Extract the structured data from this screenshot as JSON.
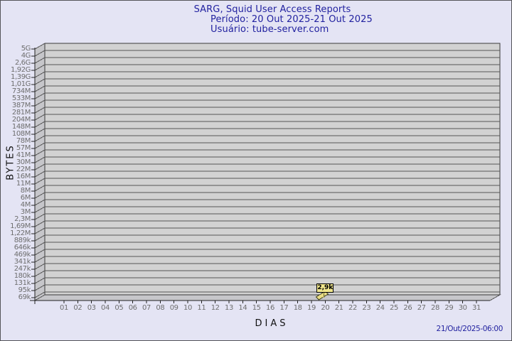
{
  "header": {
    "title": "SARG, Squid User Access Reports",
    "period": "Período: 20 Out 2025-21 Out 2025",
    "user": "Usuário: tube-server.com"
  },
  "footer": {
    "timestamp": "21/Out/2025-06:00"
  },
  "chart_data": {
    "type": "bar",
    "title": "SARG, Squid User Access Reports",
    "subtitle": "Período: 20 Out 2025-21 Out 2025",
    "user_line": "Usuário: tube-server.com",
    "xlabel": "DIAS",
    "ylabel": "BYTES",
    "y_scale": "log",
    "ylim": [
      "69k",
      "5G"
    ],
    "grid": "horizontal",
    "legend": "none",
    "style": "3d-bar-gdchart",
    "y_ticks": [
      "5G",
      "4G",
      "2,6G",
      "1,92G",
      "1,39G",
      "1,01G",
      "734M",
      "533M",
      "387M",
      "281M",
      "204M",
      "148M",
      "108M",
      "78M",
      "57M",
      "41M",
      "30M",
      "22M",
      "16M",
      "11M",
      "8M",
      "6M",
      "4M",
      "3M",
      "2,3M",
      "1,69M",
      "1,22M",
      "889k",
      "646k",
      "469k",
      "341k",
      "247k",
      "180k",
      "131k",
      "95k",
      "69k"
    ],
    "x_ticks": [
      "01",
      "02",
      "03",
      "04",
      "05",
      "06",
      "07",
      "08",
      "09",
      "10",
      "11",
      "12",
      "13",
      "14",
      "15",
      "16",
      "17",
      "18",
      "19",
      "20",
      "21",
      "22",
      "23",
      "24",
      "25",
      "26",
      "27",
      "28",
      "29",
      "30",
      "31"
    ],
    "points": [
      {
        "day": "20",
        "label": "2,9k",
        "value_bytes": 2900
      }
    ],
    "colors": {
      "page_bg": "#e4e4f4",
      "plot_bg": "#d2d2d2",
      "wall": "#c6c6ca",
      "grid": "#555555",
      "axis": "#222222",
      "tick_text": "#6e6e6e",
      "title_text": "#2222a0",
      "axis_title_text": "#111111",
      "point_fill": "#f0e68c",
      "point_edge": "#000000",
      "bar_fill": "#e8dc85",
      "border": "#55555a"
    }
  }
}
